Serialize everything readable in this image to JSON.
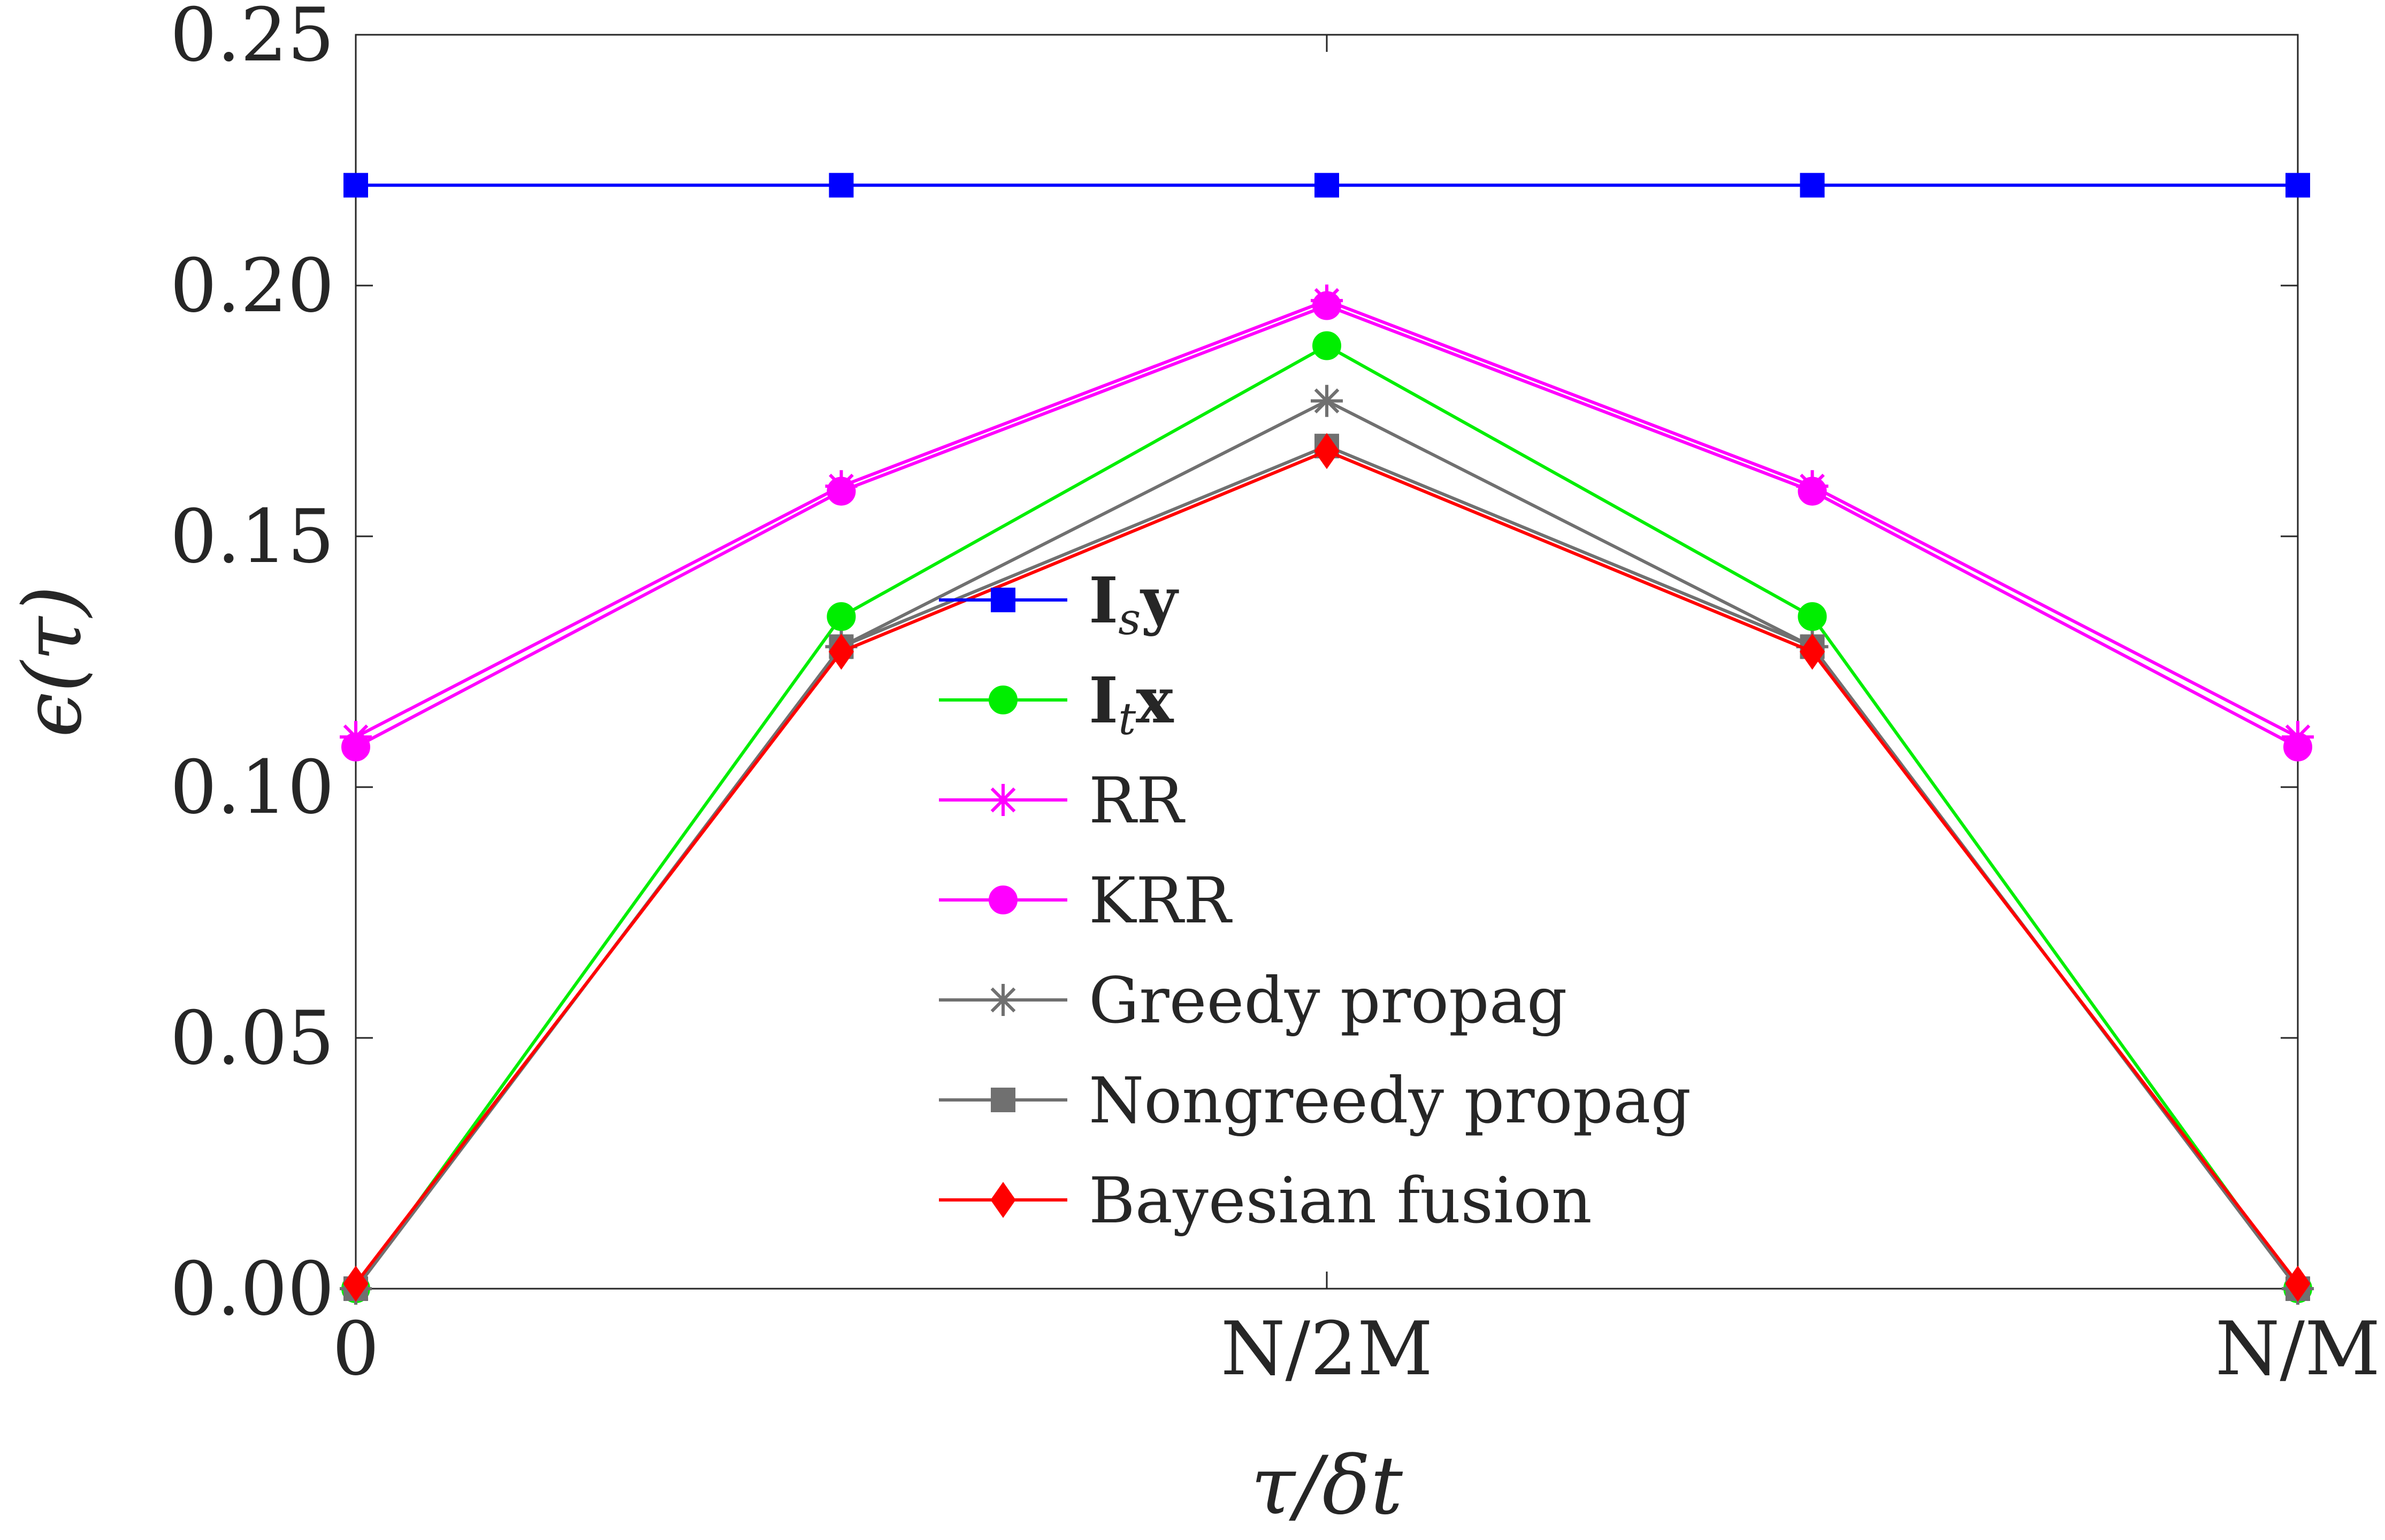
{
  "chart_data": {
    "type": "line",
    "xlabel": "τ/δt",
    "ylabel": "ϵ(τ)",
    "x": [
      0,
      0.5,
      1,
      1.5,
      2
    ],
    "x_tick_values": [
      0,
      1,
      2
    ],
    "x_tick_labels": [
      "0",
      "N/2M",
      "N/M"
    ],
    "xlim": [
      0,
      2
    ],
    "ylim": [
      0,
      0.25
    ],
    "y_ticks": [
      0.0,
      0.05,
      0.1,
      0.15,
      0.2,
      0.25
    ],
    "y_tick_labels": [
      "0.00",
      "0.05",
      "0.10",
      "0.15",
      "0.20",
      "0.25"
    ],
    "grid": false,
    "legend_position": "center",
    "series": [
      {
        "name": "Isy",
        "legend_main": "I",
        "legend_sub": "s",
        "legend_tail": "y",
        "bold": true,
        "color": "#0000ff",
        "marker": "square",
        "values": [
          0.22,
          0.22,
          0.22,
          0.22,
          0.22
        ]
      },
      {
        "name": "Itx",
        "legend_main": "I",
        "legend_sub": "t",
        "legend_tail": "x",
        "bold": true,
        "color": "#00ee00",
        "marker": "circle",
        "values": [
          0.0,
          0.134,
          0.188,
          0.134,
          0.0
        ]
      },
      {
        "name": "RR",
        "legend_main": "RR",
        "color": "#ff00ff",
        "marker": "asterisk",
        "values": [
          0.11,
          0.16,
          0.197,
          0.16,
          0.11
        ]
      },
      {
        "name": "KRR",
        "legend_main": "KRR",
        "color": "#ff00ff",
        "marker": "circle",
        "values": [
          0.108,
          0.159,
          0.196,
          0.159,
          0.108
        ]
      },
      {
        "name": "Greedy propag",
        "legend_main": "Greedy propag",
        "color": "#707070",
        "marker": "asterisk",
        "values": [
          0.0,
          0.128,
          0.177,
          0.128,
          0.0
        ]
      },
      {
        "name": "Nongreedy propag",
        "legend_main": "Nongreedy propag",
        "color": "#707070",
        "marker": "square",
        "values": [
          0.0,
          0.128,
          0.168,
          0.128,
          0.0
        ]
      },
      {
        "name": "Bayesian fusion",
        "legend_main": "Bayesian fusion",
        "color": "#ff0000",
        "marker": "diamond",
        "values": [
          0.001,
          0.127,
          0.167,
          0.127,
          0.001
        ]
      }
    ]
  }
}
